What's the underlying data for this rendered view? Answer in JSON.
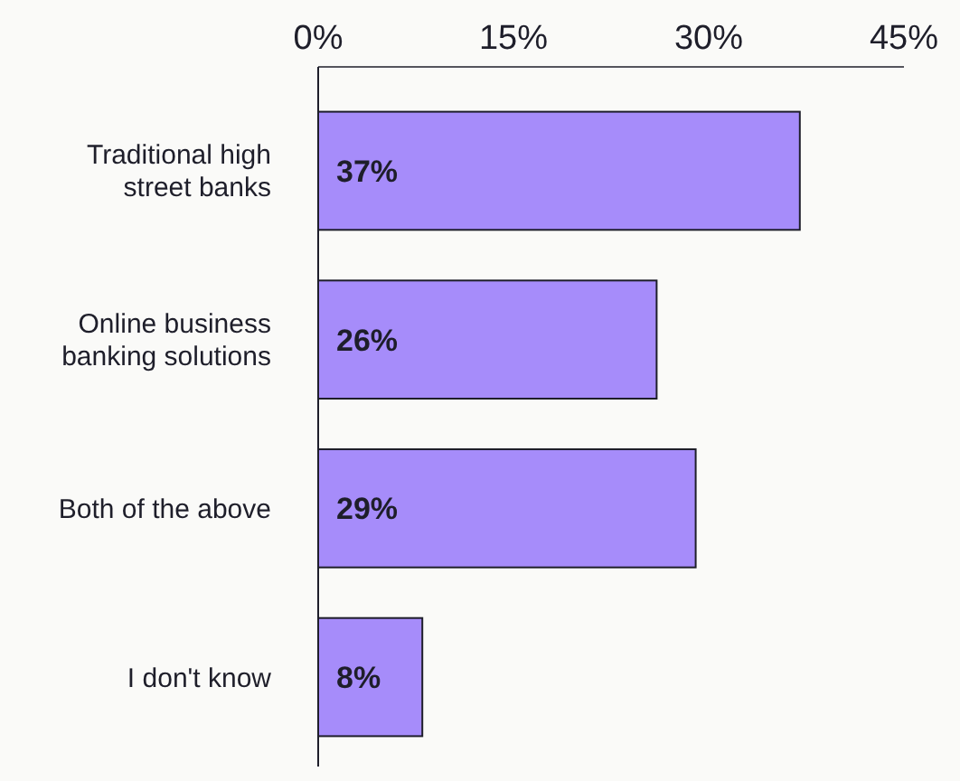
{
  "chart_data": {
    "type": "bar",
    "orientation": "horizontal",
    "categories": [
      "Traditional high street banks",
      "Online business banking solutions",
      "Both of the above",
      "I don't know"
    ],
    "values": [
      37,
      26,
      29,
      8
    ],
    "color": "#a68cfa",
    "xlim": [
      0,
      45
    ],
    "xticks": [
      {
        "value": 0,
        "label": "0%"
      },
      {
        "value": 15,
        "label": "15%"
      },
      {
        "value": 30,
        "label": "30%"
      },
      {
        "value": 45,
        "label": "45%"
      }
    ],
    "data_labels": true,
    "value_labels": [
      "37%",
      "26%",
      "29%",
      "8%"
    ],
    "grid": false
  }
}
